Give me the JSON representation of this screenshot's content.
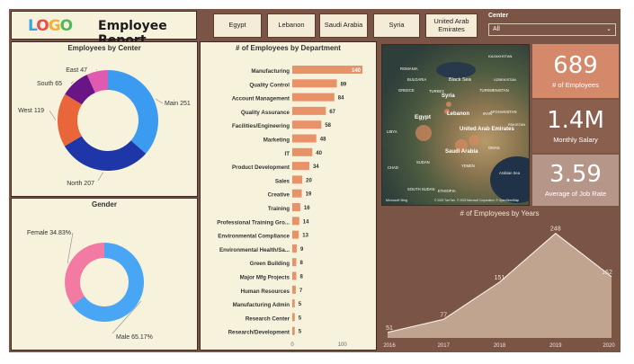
{
  "header": {
    "logo_text": "LOGO",
    "title": "Employee Report"
  },
  "filters": {
    "buttons": [
      {
        "label": "Egypt"
      },
      {
        "label": "Lebanon"
      },
      {
        "label": "Saudi Arabia"
      },
      {
        "label": "Syria"
      },
      {
        "label": "United Arab\nEmirates"
      }
    ],
    "center_label": "Center",
    "center_value": "All"
  },
  "kpis": [
    {
      "value": "689",
      "label": "# of Employees",
      "color": "#d4896a"
    },
    {
      "value": "1.4M",
      "label": "Monthly Salary",
      "color": "#8a5f4e"
    },
    {
      "value": "3.59",
      "label": "Average of Job Rate",
      "color": "#b7968a"
    }
  ],
  "map": {
    "labels": [
      "Black Sea",
      "ROMANIA",
      "BULGARIA",
      "GREECE",
      "TURKEY",
      "Syria",
      "TURKMENISTAN",
      "Lebanon",
      "IRAN",
      "AFGHANISTAN",
      "Egypt",
      "United Arab Emirates",
      "LIBYA",
      "Saudi Arabia",
      "OMAN",
      "CHAD",
      "SUDAN",
      "YEMEN",
      "Arabian Sea",
      "SOUTH SUDAN",
      "ETHIOPIA",
      "Microsoft Bing",
      "© 2023 TomTom, © 2023 Microsoft Corporation, © OpenStreetMap",
      "KAZAKHSTAN",
      "UZBEKISTAN",
      "PAKISTAN"
    ]
  },
  "chart_data": [
    {
      "type": "pie",
      "title": "Employees by Center",
      "donut": true,
      "slices": [
        {
          "label": "Main",
          "value": 251,
          "color": "#3b9bf0"
        },
        {
          "label": "North",
          "value": 207,
          "color": "#1f36a8"
        },
        {
          "label": "West",
          "value": 119,
          "color": "#e8663a"
        },
        {
          "label": "South",
          "value": 65,
          "color": "#6a1586"
        },
        {
          "label": "East",
          "value": 47,
          "color": "#e05bb0"
        }
      ]
    },
    {
      "type": "pie",
      "title": "Gender",
      "donut": true,
      "slices": [
        {
          "label": "Male",
          "value": 65.17,
          "display": "65.17%",
          "color": "#49a6f5"
        },
        {
          "label": "Female",
          "value": 34.83,
          "display": "34.83%",
          "color": "#f27aa3"
        }
      ]
    },
    {
      "type": "bar",
      "orientation": "horizontal",
      "title": "# of Employees by Department",
      "color": "#e8926a",
      "categories": [
        "Manufacturing",
        "Quality Control",
        "Account Management",
        "Quality Assurance",
        "Facilities/Engineering",
        "Marketing",
        "IT",
        "Product Development",
        "Sales",
        "Creative",
        "Training",
        "Professional Training Gro...",
        "Environmental Compliance",
        "Environmental Health/Sa...",
        "Green Building",
        "Major Mfg Projects",
        "Human Resources",
        "Manufacturing Admin",
        "Research Center",
        "Research/Development"
      ],
      "values": [
        140,
        89,
        84,
        67,
        58,
        48,
        40,
        34,
        20,
        19,
        16,
        14,
        13,
        9,
        8,
        8,
        7,
        5,
        5,
        5
      ],
      "xticks": [
        0,
        100
      ],
      "xlim": [
        0,
        140
      ]
    },
    {
      "type": "area",
      "title": "# of Employees by Years",
      "color": "#c0a48f",
      "x": [
        "2016",
        "2017",
        "2018",
        "2019",
        "2020"
      ],
      "values": [
        51,
        77,
        151,
        248,
        162
      ],
      "ylim": [
        40,
        260
      ]
    }
  ]
}
